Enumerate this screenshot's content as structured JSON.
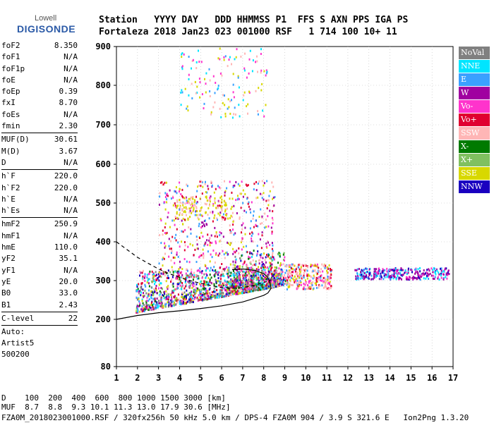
{
  "logo": {
    "sub": "Lowell",
    "main": "DIGISONDE"
  },
  "header": {
    "line1": "Station   YYYY DAY   DDD HHMMSS P1  FFS S AXN PPS IGA PS",
    "line2": "Fortaleza 2018 Jan23 023 001000 RSF   1 714 100 10+ 11"
  },
  "params": [
    {
      "name": "foF2",
      "value": "8.350"
    },
    {
      "name": "foF1",
      "value": "N/A"
    },
    {
      "name": "foF1p",
      "value": "N/A"
    },
    {
      "name": "foE",
      "value": "N/A"
    },
    {
      "name": "foEp",
      "value": "0.39"
    },
    {
      "name": "fxI",
      "value": "8.70"
    },
    {
      "name": "foEs",
      "value": "N/A"
    },
    {
      "name": "fmin",
      "value": "2.30"
    },
    {
      "name": "MUF(D)",
      "value": "30.61"
    },
    {
      "name": "M(D)",
      "value": "3.67"
    },
    {
      "name": "D",
      "value": "N/A"
    },
    {
      "name": "h`F",
      "value": "220.0"
    },
    {
      "name": "h`F2",
      "value": "220.0"
    },
    {
      "name": "h`E",
      "value": "N/A"
    },
    {
      "name": "h`Es",
      "value": "N/A"
    },
    {
      "name": "hmF2",
      "value": "250.9"
    },
    {
      "name": "hmF1",
      "value": "N/A"
    },
    {
      "name": "hmE",
      "value": "110.0"
    },
    {
      "name": "yF2",
      "value": "35.1"
    },
    {
      "name": "yF1",
      "value": "N/A"
    },
    {
      "name": "yE",
      "value": "20.0"
    },
    {
      "name": "B0",
      "value": "33.0"
    },
    {
      "name": "B1",
      "value": "2.43"
    },
    {
      "name": "C-level",
      "value": "22"
    }
  ],
  "auto": {
    "line1": "Auto:",
    "line2": "Artist5",
    "line3": "500200"
  },
  "legend": [
    {
      "label": "NoVal",
      "color": "#808080"
    },
    {
      "label": "NNE",
      "color": "#00e5ff"
    },
    {
      "label": "E",
      "color": "#3aa0ff"
    },
    {
      "label": "W",
      "color": "#a000a0"
    },
    {
      "label": "Vo-",
      "color": "#ff33cc"
    },
    {
      "label": "Vo+",
      "color": "#e00030"
    },
    {
      "label": "SSW",
      "color": "#ffb6b6"
    },
    {
      "label": "X-",
      "color": "#007a00"
    },
    {
      "label": "X+",
      "color": "#80c060"
    },
    {
      "label": "SSE",
      "color": "#d8d800"
    },
    {
      "label": "NNW",
      "color": "#1a00c0"
    }
  ],
  "footer": {
    "line1": "D    100  200  400  600  800 1000 1500 3000 [km]",
    "line2": "MUF  8.7  8.8  9.3 10.1 11.3 13.0 17.9 30.6 [MHz]",
    "line3": "FZA0M_2018023001000.RSF / 320fx256h 50 kHz 5.0 km / DPS-4 FZA0M 904 / 3.9 S 321.6 E   Ion2Png 1.3.20"
  },
  "chart_data": {
    "type": "scatter",
    "xlim": [
      1,
      17
    ],
    "ylim": [
      80,
      900
    ],
    "xticks": [
      "1",
      "2",
      "3",
      "4",
      "5",
      "6",
      "7",
      "8",
      "9",
      "10",
      "11",
      "12",
      "13",
      "14",
      "15",
      "16",
      "17"
    ],
    "yticks": [
      "80",
      "200",
      "300",
      "400",
      "500",
      "600",
      "700",
      "800",
      "900"
    ],
    "y_scale": "nonlinear",
    "grid": "dotted",
    "clusters": [
      {
        "x": [
          1.9,
          8.8
        ],
        "y": [
          215,
          330
        ],
        "n": 1400,
        "kind": "main"
      },
      {
        "x": [
          6.5,
          9.0
        ],
        "y": [
          280,
          380
        ],
        "n": 350,
        "kind": "main"
      },
      {
        "x": [
          9.0,
          11.2
        ],
        "y": [
          280,
          345
        ],
        "n": 300,
        "kind": "pink"
      },
      {
        "x": [
          12.3,
          16.8
        ],
        "y": [
          305,
          335
        ],
        "n": 320,
        "kind": "nnw"
      },
      {
        "x": [
          3.0,
          8.5
        ],
        "y": [
          330,
          560
        ],
        "n": 500,
        "kind": "upper"
      },
      {
        "x": [
          3.8,
          6.5
        ],
        "y": [
          460,
          520
        ],
        "n": 120,
        "kind": "sse"
      },
      {
        "x": [
          4.0,
          8.2
        ],
        "y": [
          720,
          900
        ],
        "n": 140,
        "kind": "top"
      }
    ],
    "curves": [
      {
        "name": "",
        "style": "solid",
        "x": [
          1.0,
          2.0,
          3.0,
          4.0,
          5.0,
          6.0,
          7.0,
          7.6,
          8.0,
          8.2,
          8.35,
          8.3,
          8.2,
          8.0,
          7.6,
          7.0,
          6.5
        ],
        "y": [
          200,
          210,
          217,
          222,
          228,
          235,
          245,
          255,
          262,
          268,
          280,
          295,
          308,
          318,
          326,
          330,
          328
        ]
      },
      {
        "name": "",
        "style": "dashed",
        "x": [
          1.0,
          1.5,
          2.0,
          2.5,
          3.0,
          3.5,
          4.0,
          4.5,
          5.0,
          5.5,
          6.0,
          6.5,
          7.0,
          7.5,
          8.0,
          8.35
        ],
        "y": [
          400,
          380,
          360,
          345,
          330,
          318,
          308,
          300,
          293,
          287,
          282,
          280,
          282,
          287,
          295,
          302
        ]
      }
    ]
  }
}
